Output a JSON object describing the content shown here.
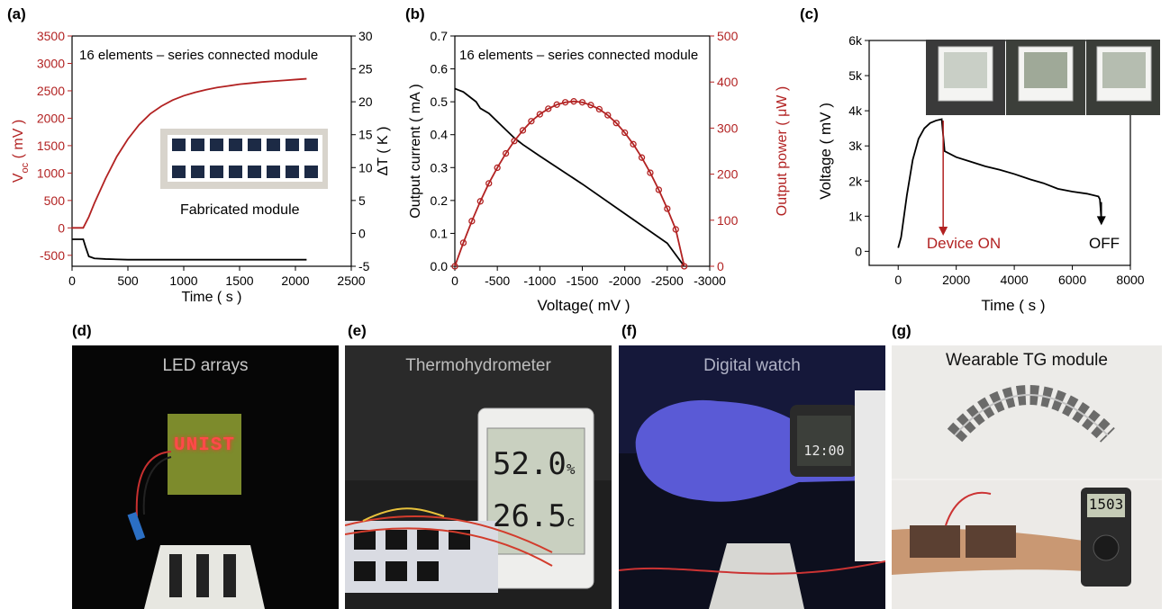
{
  "panels": {
    "a": "(a)",
    "b": "(b)",
    "c": "(c)",
    "d": "(d)",
    "e": "(e)",
    "f": "(f)",
    "g": "(g)"
  },
  "colors": {
    "red": "#b22222",
    "black": "#000000"
  },
  "chart_data": [
    {
      "id": "a",
      "type": "line",
      "annotation": "16 elements – series connected module",
      "inset_label": "Fabricated module",
      "xlabel": "Time ( s )",
      "ylabel_left": "V",
      "ylabel_left_sub": "oc",
      "ylabel_left_unit": " ( mV )",
      "ylabel_right": "ΔT ( K )",
      "xlim": [
        0,
        2500
      ],
      "ylim_left": [
        -700,
        3500
      ],
      "ylim_right": [
        -5,
        30
      ],
      "x_ticks": [
        "0",
        "500",
        "1000",
        "1500",
        "2000",
        "2500"
      ],
      "y_left_ticks": [
        "-500",
        "0",
        "500",
        "1000",
        "1500",
        "2000",
        "2500",
        "3000",
        "3500"
      ],
      "y_right_ticks": [
        "-5",
        "0",
        "5",
        "10",
        "15",
        "20",
        "25",
        "30"
      ],
      "series": [
        {
          "axis": "left",
          "color": "#b22222",
          "x": [
            0,
            100,
            150,
            200,
            300,
            400,
            500,
            600,
            700,
            800,
            900,
            1000,
            1100,
            1200,
            1300,
            1400,
            1500,
            1600,
            1700,
            1800,
            1900,
            2000,
            2100
          ],
          "y": [
            0,
            0,
            200,
            450,
            900,
            1300,
            1620,
            1880,
            2080,
            2220,
            2330,
            2410,
            2470,
            2520,
            2560,
            2590,
            2620,
            2640,
            2660,
            2675,
            2690,
            2705,
            2720
          ]
        },
        {
          "axis": "right",
          "color": "#000000",
          "x": [
            0,
            100,
            120,
            150,
            200,
            300,
            500,
            1000,
            1500,
            2000,
            2100
          ],
          "y": [
            -0.9,
            -0.9,
            -2.0,
            -3.5,
            -3.8,
            -3.9,
            -4.0,
            -4.0,
            -4.0,
            -4.0,
            -4.0
          ]
        }
      ]
    },
    {
      "id": "b",
      "type": "line",
      "annotation": "16 elements – series connected module",
      "xlabel": "Voltage( mV )",
      "ylabel_left": "Output current ( mA )",
      "ylabel_right": "Output power ( μW )",
      "xlim": [
        0,
        -3000
      ],
      "ylim_left": [
        0,
        0.7
      ],
      "ylim_right": [
        0,
        500
      ],
      "x_ticks": [
        "0",
        "-500",
        "-1000",
        "-1500",
        "-2000",
        "-2500",
        "-3000"
      ],
      "y_left_ticks": [
        "0.0",
        "0.1",
        "0.2",
        "0.3",
        "0.4",
        "0.5",
        "0.6",
        "0.7"
      ],
      "y_right_ticks": [
        "0",
        "100",
        "200",
        "300",
        "400",
        "500"
      ],
      "series": [
        {
          "axis": "left",
          "color": "#000000",
          "x": [
            0,
            -100,
            -200,
            -250,
            -300,
            -400,
            -500,
            -600,
            -700,
            -800,
            -1000,
            -1500,
            -2000,
            -2500,
            -2700
          ],
          "y": [
            0.54,
            0.53,
            0.51,
            0.5,
            0.48,
            0.465,
            0.44,
            0.415,
            0.39,
            0.37,
            0.335,
            0.25,
            0.16,
            0.07,
            0.0
          ]
        },
        {
          "axis": "right",
          "color": "#b22222",
          "markers": true,
          "x": [
            0,
            -100,
            -200,
            -300,
            -400,
            -500,
            -600,
            -700,
            -800,
            -900,
            -1000,
            -1100,
            -1200,
            -1300,
            -1400,
            -1500,
            -1600,
            -1700,
            -1800,
            -1900,
            -2000,
            -2100,
            -2200,
            -2300,
            -2400,
            -2500,
            -2600,
            -2700
          ],
          "y": [
            0,
            51,
            98,
            141,
            180,
            214,
            245,
            272,
            295,
            315,
            330,
            342,
            351,
            356,
            358,
            356,
            350,
            341,
            328,
            311,
            290,
            265,
            236,
            203,
            166,
            125,
            80,
            0
          ]
        }
      ]
    },
    {
      "id": "c",
      "type": "line",
      "xlabel": "Time ( s )",
      "ylabel": "Voltage ( mV )",
      "xlim": [
        -1000,
        8000
      ],
      "ylim": [
        -400,
        6000
      ],
      "x_ticks": [
        "0",
        "2000",
        "4000",
        "6000",
        "8000"
      ],
      "y_ticks": [
        "0",
        "1k",
        "2k",
        "3k",
        "4k",
        "5k",
        "6k"
      ],
      "annotations": [
        "Device ON",
        "OFF"
      ],
      "series": [
        {
          "color": "#000000",
          "x": [
            0,
            100,
            300,
            500,
            700,
            900,
            1100,
            1300,
            1500,
            1550,
            1600,
            2000,
            2500,
            3000,
            3500,
            4000,
            4500,
            5000,
            5500,
            6000,
            6500,
            6900,
            6950,
            7000
          ],
          "y": [
            100,
            400,
            1600,
            2600,
            3200,
            3500,
            3650,
            3720,
            3760,
            3300,
            2850,
            2680,
            2550,
            2420,
            2320,
            2200,
            2060,
            1940,
            1780,
            1700,
            1640,
            1560,
            1480,
            900
          ]
        }
      ]
    }
  ],
  "photos": {
    "d": {
      "title": "LED arrays",
      "led_text": "UNIST"
    },
    "e": {
      "title": "Thermohydrometer",
      "humidity": "52.0",
      "humidity_unit": "%",
      "temperature": "26.5",
      "temperature_unit": "c"
    },
    "f": {
      "title": "Digital watch",
      "time": "12:00"
    },
    "g": {
      "title": "Wearable TG module",
      "meter": "1503"
    }
  }
}
